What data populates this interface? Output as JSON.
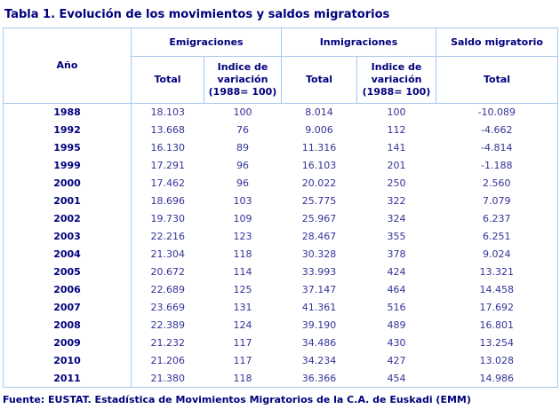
{
  "title": "Tabla 1. Evolución de los movimientos y saldos migratorios",
  "table": {
    "col_groups": [
      {
        "label": "Año"
      },
      {
        "label": "Emigraciones"
      },
      {
        "label": "Inmigraciones"
      },
      {
        "label": "Saldo migratorio"
      }
    ],
    "sub_headers": [
      "Total",
      "Indice de\nvariación\n(1988= 100)",
      "Total",
      "Indice de\nvariación\n(1988= 100)",
      "Total"
    ],
    "rows": [
      [
        "1988",
        "18.103",
        "100",
        "8.014",
        "100",
        "-10.089"
      ],
      [
        "1992",
        "13.668",
        "76",
        "9.006",
        "112",
        "-4.662"
      ],
      [
        "1995",
        "16.130",
        "89",
        "11.316",
        "141",
        "-4.814"
      ],
      [
        "1999",
        "17.291",
        "96",
        "16.103",
        "201",
        "-1.188"
      ],
      [
        "2000",
        "17.462",
        "96",
        "20.022",
        "250",
        "2.560"
      ],
      [
        "2001",
        "18.696",
        "103",
        "25.775",
        "322",
        "7.079"
      ],
      [
        "2002",
        "19.730",
        "109",
        "25.967",
        "324",
        "6.237"
      ],
      [
        "2003",
        "22.216",
        "123",
        "28.467",
        "355",
        "6.251"
      ],
      [
        "2004",
        "21.304",
        "118",
        "30.328",
        "378",
        "9.024"
      ],
      [
        "2005",
        "20.672",
        "114",
        "33.993",
        "424",
        "13.321"
      ],
      [
        "2006",
        "22.689",
        "125",
        "37.147",
        "464",
        "14.458"
      ],
      [
        "2007",
        "23.669",
        "131",
        "41.361",
        "516",
        "17.692"
      ],
      [
        "2008",
        "22.389",
        "124",
        "39.190",
        "489",
        "16.801"
      ],
      [
        "2009",
        "21.232",
        "117",
        "34.486",
        "430",
        "13.254"
      ],
      [
        "2010",
        "21.206",
        "117",
        "34.234",
        "427",
        "13.028"
      ],
      [
        "2011",
        "21.380",
        "118",
        "36.366",
        "454",
        "14.986"
      ]
    ]
  },
  "footer": "Fuente: EUSTAT. Estadística de Movimientos Migratorios de la C.A. de Euskadi (EMM)",
  "colors": {
    "heading_text": "#00007d",
    "value_text": "#333399",
    "border": "#a5c9ee",
    "background": "#ffffff"
  }
}
